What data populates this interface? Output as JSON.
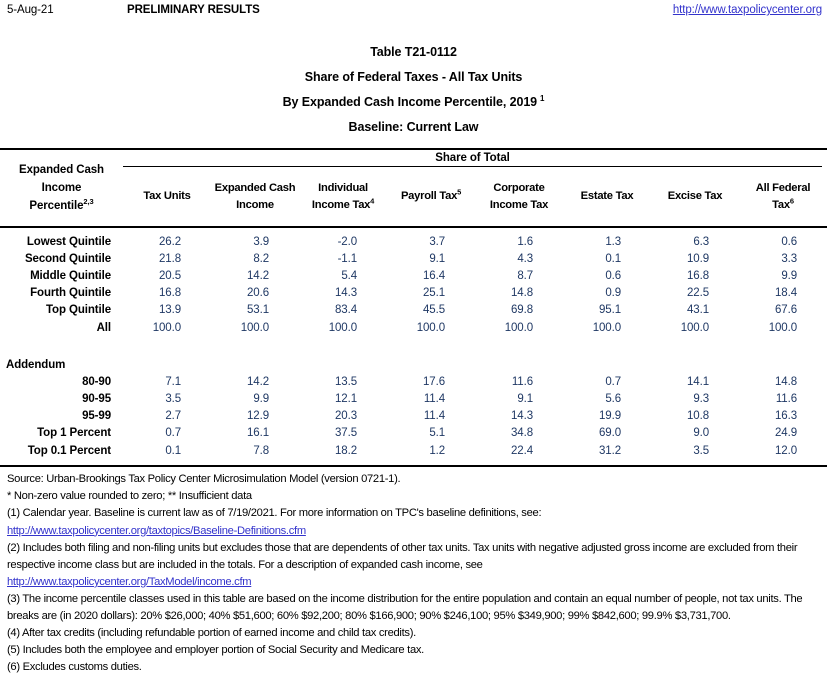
{
  "meta": {
    "date": "5-Aug-21",
    "status": "PRELIMINARY RESULTS",
    "site_url": "http://www.taxpolicycenter.org"
  },
  "title": {
    "line1": "Table T21-0112",
    "line2": "Share of Federal Taxes - All Tax Units",
    "line3": "By Expanded Cash Income Percentile, 2019",
    "line3_sup": "1",
    "line4": "Baseline: Current Law"
  },
  "table": {
    "row_header": {
      "lines": [
        "Expanded Cash",
        "Income",
        "Percentile"
      ],
      "sup": "2,3"
    },
    "span_header": "Share of Total",
    "columns": [
      {
        "lines": [
          "Tax Units"
        ],
        "sup": ""
      },
      {
        "lines": [
          "Expanded Cash",
          "Income"
        ],
        "sup": ""
      },
      {
        "lines": [
          "Individual",
          "Income Tax"
        ],
        "sup": "4"
      },
      {
        "lines": [
          "Payroll Tax"
        ],
        "sup": "5"
      },
      {
        "lines": [
          "Corporate",
          "Income Tax"
        ],
        "sup": ""
      },
      {
        "lines": [
          "Estate Tax"
        ],
        "sup": ""
      },
      {
        "lines": [
          "Excise Tax"
        ],
        "sup": ""
      },
      {
        "lines": [
          "All Federal",
          "Tax"
        ],
        "sup": "6"
      }
    ],
    "rows": [
      {
        "label": "Lowest Quintile",
        "values": [
          "26.2",
          "3.9",
          "-2.0",
          "3.7",
          "1.6",
          "1.3",
          "6.3",
          "0.6"
        ]
      },
      {
        "label": "Second Quintile",
        "values": [
          "21.8",
          "8.2",
          "-1.1",
          "9.1",
          "4.3",
          "0.1",
          "10.9",
          "3.3"
        ]
      },
      {
        "label": "Middle Quintile",
        "values": [
          "20.5",
          "14.2",
          "5.4",
          "16.4",
          "8.7",
          "0.6",
          "16.8",
          "9.9"
        ]
      },
      {
        "label": "Fourth Quintile",
        "values": [
          "16.8",
          "20.6",
          "14.3",
          "25.1",
          "14.8",
          "0.9",
          "22.5",
          "18.4"
        ]
      },
      {
        "label": "Top Quintile",
        "values": [
          "13.9",
          "53.1",
          "83.4",
          "45.5",
          "69.8",
          "95.1",
          "43.1",
          "67.6"
        ]
      },
      {
        "label": "All",
        "values": [
          "100.0",
          "100.0",
          "100.0",
          "100.0",
          "100.0",
          "100.0",
          "100.0",
          "100.0"
        ]
      }
    ],
    "addendum_label": "Addendum",
    "addendum_rows": [
      {
        "label": "80-90",
        "values": [
          "7.1",
          "14.2",
          "13.5",
          "17.6",
          "11.6",
          "0.7",
          "14.1",
          "14.8"
        ]
      },
      {
        "label": "90-95",
        "values": [
          "3.5",
          "9.9",
          "12.1",
          "11.4",
          "9.1",
          "5.6",
          "9.3",
          "11.6"
        ]
      },
      {
        "label": "95-99",
        "values": [
          "2.7",
          "12.9",
          "20.3",
          "11.4",
          "14.3",
          "19.9",
          "10.8",
          "16.3"
        ]
      },
      {
        "label": "Top 1 Percent",
        "values": [
          "0.7",
          "16.1",
          "37.5",
          "5.1",
          "34.8",
          "69.0",
          "9.0",
          "24.9"
        ]
      },
      {
        "label": "Top 0.1 Percent",
        "values": [
          "0.1",
          "7.8",
          "18.2",
          "1.2",
          "22.4",
          "31.2",
          "3.5",
          "12.0"
        ]
      }
    ]
  },
  "notes": [
    {
      "text": "Source: Urban-Brookings Tax Policy Center Microsimulation Model (version 0721-1)."
    },
    {
      "text": "* Non-zero value rounded to zero; ** Insufficient data"
    },
    {
      "text": "(1) Calendar year. Baseline is current law as of 7/19/2021. For more information on TPC's baseline definitions, see:"
    },
    {
      "link": "http://www.taxpolicycenter.org/taxtopics/Baseline-Definitions.cfm"
    },
    {
      "text": "(2) Includes both filing and non-filing units but excludes those that are dependents of other tax units. Tax units with negative adjusted gross income are excluded from their respective income class but are included in the totals. For a description of expanded cash income, see"
    },
    {
      "link": "http://www.taxpolicycenter.org/TaxModel/income.cfm"
    },
    {
      "text": "(3) The income percentile classes used in this table are based on the income distribution for the entire population and contain an equal number of people, not tax units. The breaks are (in 2020 dollars): 20% $26,000; 40% $51,600; 60% $92,200; 80% $166,900; 90% $246,100; 95% $349,900; 99% $842,600; 99.9% $3,731,700."
    },
    {
      "text": "(4) After tax credits (including refundable portion of earned income and child tax credits)."
    },
    {
      "text": "(5) Includes both the employee and employer portion of Social Security and Medicare tax."
    },
    {
      "text": "(6) Excludes customs duties."
    }
  ],
  "colors": {
    "value_text": "#1F3864",
    "link_blue": "#3333CC",
    "text": "#000000",
    "rule": "#000000"
  }
}
